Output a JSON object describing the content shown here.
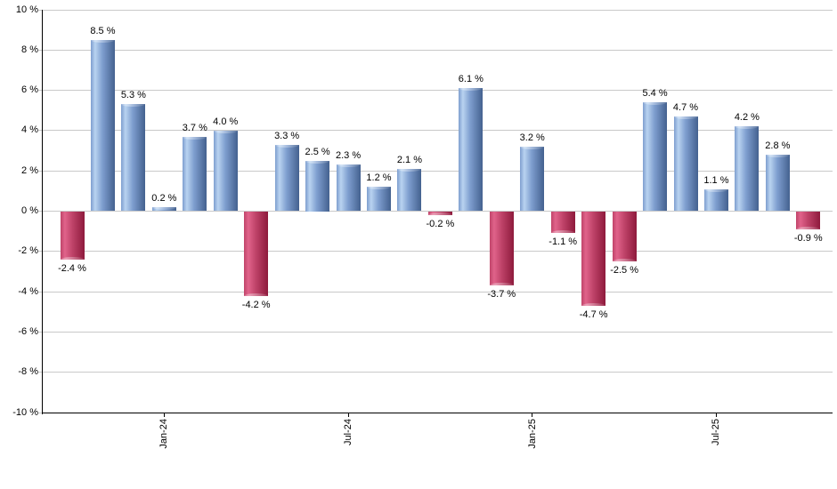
{
  "chart": {
    "background": "#ffffff"
  },
  "chart_data": {
    "type": "bar",
    "title": "",
    "xlabel": "",
    "ylabel": "",
    "ylim": [
      -10,
      10
    ],
    "y_tick_step": 2,
    "grid": true,
    "legend": "none",
    "bars": [
      {
        "value": -2.4,
        "label": "-2.4 %"
      },
      {
        "value": 8.5,
        "label": "8.5 %"
      },
      {
        "value": 5.3,
        "label": "5.3 %"
      },
      {
        "value": 0.2,
        "label": "0.2 %"
      },
      {
        "value": 3.7,
        "label": "3.7 %"
      },
      {
        "value": 4.0,
        "label": "4.0 %"
      },
      {
        "value": -4.2,
        "label": "-4.2 %"
      },
      {
        "value": 3.3,
        "label": "3.3 %"
      },
      {
        "value": 2.5,
        "label": "2.5 %"
      },
      {
        "value": 2.3,
        "label": "2.3 %"
      },
      {
        "value": 1.2,
        "label": "1.2 %"
      },
      {
        "value": 2.1,
        "label": "2.1 %"
      },
      {
        "value": -0.2,
        "label": "-0.2 %"
      },
      {
        "value": 6.1,
        "label": "6.1 %"
      },
      {
        "value": -3.7,
        "label": "-3.7 %"
      },
      {
        "value": 3.2,
        "label": "3.2 %"
      },
      {
        "value": -1.1,
        "label": "-1.1 %"
      },
      {
        "value": -4.7,
        "label": "-4.7 %"
      },
      {
        "value": -2.5,
        "label": "-2.5 %"
      },
      {
        "value": 5.4,
        "label": "5.4 %"
      },
      {
        "value": 4.7,
        "label": "4.7 %"
      },
      {
        "value": 1.1,
        "label": "1.1 %"
      },
      {
        "value": 4.2,
        "label": "4.2 %"
      },
      {
        "value": 2.8,
        "label": "2.8 %"
      },
      {
        "value": -0.9,
        "label": "-0.9 %"
      }
    ],
    "x_ticks": [
      {
        "label": "Jan-24",
        "bar_index": 3
      },
      {
        "label": "Jul-24",
        "bar_index": 9
      },
      {
        "label": "Jan-25",
        "bar_index": 15
      },
      {
        "label": "Jul-25",
        "bar_index": 21
      }
    ],
    "y_ticks": [
      {
        "value": 10,
        "label": "10 %"
      },
      {
        "value": 8,
        "label": "8 %"
      },
      {
        "value": 6,
        "label": "6 %"
      },
      {
        "value": 4,
        "label": "4 %"
      },
      {
        "value": 2,
        "label": "2 %"
      },
      {
        "value": 0,
        "label": "0 %"
      },
      {
        "value": -2,
        "label": "-2 %"
      },
      {
        "value": -4,
        "label": "-4 %"
      },
      {
        "value": -6,
        "label": "-6 %"
      },
      {
        "value": -8,
        "label": "-8 %"
      },
      {
        "value": -10,
        "label": "-10 %"
      }
    ],
    "colors": {
      "positive_mid": "#7e9ecf",
      "positive_light": "#b9d3f0",
      "positive_dark": "#44618f",
      "negative_mid": "#c0446a",
      "negative_light": "#e0638a",
      "negative_dark": "#8e1a3c",
      "gridline": "#c9c9c9",
      "axis": "#000000",
      "text": "#000000"
    }
  }
}
